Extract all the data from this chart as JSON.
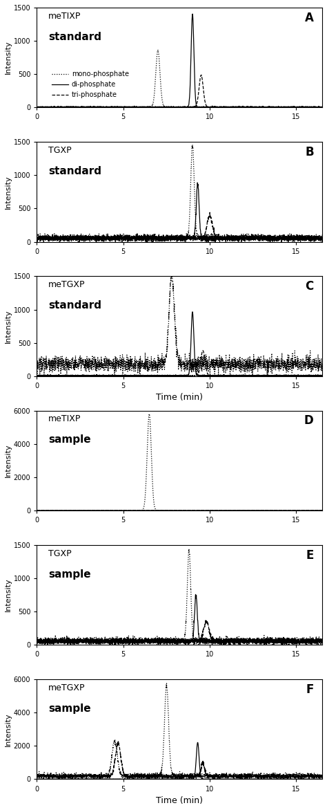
{
  "panels": [
    {
      "label": "A",
      "title_line1": "meTIXP",
      "title_line2": "standard",
      "show_legend": true,
      "ylim": [
        0,
        1500
      ],
      "yticks": [
        0,
        500,
        1000,
        1500
      ],
      "show_xlabel": false,
      "scale": "normal"
    },
    {
      "label": "B",
      "title_line1": "TGXP",
      "title_line2": "standard",
      "show_legend": false,
      "ylim": [
        0,
        1500
      ],
      "yticks": [
        0,
        500,
        1000,
        1500
      ],
      "show_xlabel": false,
      "scale": "normal"
    },
    {
      "label": "C",
      "title_line1": "meTGXP",
      "title_line2": "standard",
      "show_legend": false,
      "ylim": [
        0,
        1500
      ],
      "yticks": [
        0,
        500,
        1000,
        1500
      ],
      "show_xlabel": true,
      "scale": "normal"
    },
    {
      "label": "D",
      "title_line1": "meTIXP",
      "title_line2": "sample",
      "show_legend": false,
      "ylim": [
        0,
        6000
      ],
      "yticks": [
        0,
        2000,
        4000,
        6000
      ],
      "show_xlabel": false,
      "scale": "large"
    },
    {
      "label": "E",
      "title_line1": "TGXP",
      "title_line2": "sample",
      "show_legend": false,
      "ylim": [
        0,
        1500
      ],
      "yticks": [
        0,
        500,
        1000,
        1500
      ],
      "show_xlabel": false,
      "scale": "normal"
    },
    {
      "label": "F",
      "title_line1": "meTGXP",
      "title_line2": "sample",
      "show_legend": false,
      "ylim": [
        0,
        6000
      ],
      "yticks": [
        0,
        2000,
        4000,
        6000
      ],
      "show_xlabel": true,
      "scale": "large"
    }
  ],
  "xlim": [
    0,
    16.5
  ],
  "xticks": [
    0,
    5,
    10,
    15
  ],
  "xlabel": "Time (min)",
  "ylabel": "Intensity",
  "legend_labels": [
    "mono-phosphate",
    "di-phosphate",
    "tri-phosphate"
  ],
  "line_styles": [
    "dotted",
    "solid",
    "dashed"
  ],
  "background_color": "#ffffff"
}
